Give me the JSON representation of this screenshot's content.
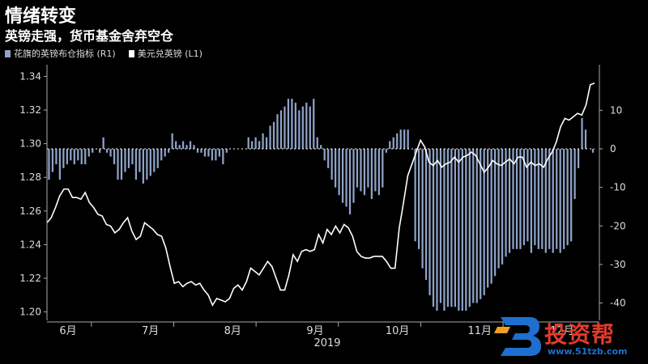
{
  "header": {
    "title": "情绪转变",
    "subtitle": "英镑走强，货币基金舍弃空仓"
  },
  "legend": {
    "items": [
      {
        "label": "花旗的英镑布仓指标 (R1)",
        "color": "#8fa3c8"
      },
      {
        "label": "美元兑英镑 (L1)",
        "color": "#ffffff"
      }
    ]
  },
  "watermark": {
    "brand": "投资帮",
    "url": "www.51tzb.com"
  },
  "chart_data": {
    "type": "bar+line",
    "x_year_label": "2019",
    "x_month_ticks": [
      "6月",
      "7月",
      "8月",
      "9月",
      "10月",
      "11月",
      "12月"
    ],
    "left_axis": {
      "ylim": [
        1.195,
        1.345
      ],
      "ticks": [
        1.2,
        1.22,
        1.24,
        1.26,
        1.28,
        1.3,
        1.32,
        1.34
      ]
    },
    "right_axis": {
      "ylim": [
        -44.5,
        21
      ],
      "ticks": [
        -40,
        -30,
        -20,
        -10,
        0,
        10
      ]
    },
    "series": [
      {
        "name": "花旗的英镑布仓指标 (R1)",
        "kind": "bar",
        "axis": "right",
        "color": "#8fa3c8",
        "values": [
          -8,
          -6,
          -4,
          -8,
          -5,
          -4,
          -3,
          -4,
          -3,
          -4,
          -4,
          -2,
          -1,
          0,
          -1,
          3,
          -1,
          -2,
          -4,
          -8,
          -8,
          -6,
          -5,
          -4,
          -8,
          -6,
          -9,
          -8,
          -7,
          -6,
          -5,
          -3,
          -2,
          -1,
          4,
          2,
          1,
          2,
          1,
          2,
          1,
          -1,
          -1,
          -2,
          -2,
          -3,
          -3,
          -2,
          -4,
          -1,
          0,
          0,
          0,
          0,
          0,
          3,
          2,
          3,
          2,
          4,
          3,
          6,
          7,
          9,
          10,
          11,
          13,
          13,
          12,
          10,
          11,
          12,
          11,
          13,
          3,
          1,
          -3,
          -5,
          -8,
          -10,
          -12,
          -14,
          -15,
          -17,
          -14,
          -10,
          -11,
          -12,
          -10,
          -13,
          -11,
          -12,
          -10,
          -1,
          2,
          3,
          4,
          5,
          5,
          5,
          0,
          -24,
          -26,
          -31,
          -34,
          -38,
          -41,
          -42,
          -40,
          -42,
          -41,
          -41,
          -41,
          -42,
          -42,
          -42,
          -41,
          -40,
          -40,
          -39,
          -38,
          -36,
          -35,
          -33,
          -31,
          -30,
          -28,
          -27,
          -26,
          -26,
          -26,
          -25,
          -24,
          -27,
          -25,
          -26,
          -26,
          -27,
          -26,
          -27,
          -26,
          -27,
          -26,
          -25,
          -24,
          -13,
          -5,
          8,
          5,
          0,
          -1
        ]
      },
      {
        "name": "美元兑英镑 (L1)",
        "kind": "line",
        "axis": "left",
        "color": "#ffffff",
        "values": [
          1.253,
          1.256,
          1.262,
          1.269,
          1.273,
          1.273,
          1.268,
          1.268,
          1.267,
          1.271,
          1.265,
          1.262,
          1.258,
          1.257,
          1.252,
          1.251,
          1.247,
          1.249,
          1.253,
          1.256,
          1.248,
          1.243,
          1.245,
          1.253,
          1.251,
          1.249,
          1.246,
          1.245,
          1.238,
          1.227,
          1.217,
          1.218,
          1.215,
          1.217,
          1.218,
          1.216,
          1.217,
          1.213,
          1.21,
          1.204,
          1.208,
          1.207,
          1.206,
          1.208,
          1.214,
          1.216,
          1.213,
          1.218,
          1.226,
          1.224,
          1.222,
          1.226,
          1.23,
          1.227,
          1.22,
          1.213,
          1.213,
          1.222,
          1.234,
          1.23,
          1.236,
          1.237,
          1.236,
          1.237,
          1.246,
          1.241,
          1.249,
          1.246,
          1.251,
          1.247,
          1.252,
          1.25,
          1.245,
          1.236,
          1.233,
          1.232,
          1.232,
          1.233,
          1.233,
          1.233,
          1.23,
          1.226,
          1.226,
          1.25,
          1.265,
          1.281,
          1.288,
          1.295,
          1.302,
          1.298,
          1.289,
          1.287,
          1.29,
          1.286,
          1.288,
          1.289,
          1.292,
          1.289,
          1.292,
          1.293,
          1.295,
          1.293,
          1.288,
          1.283,
          1.286,
          1.29,
          1.288,
          1.287,
          1.289,
          1.291,
          1.288,
          1.292,
          1.292,
          1.286,
          1.289,
          1.287,
          1.288,
          1.286,
          1.291,
          1.295,
          1.301,
          1.31,
          1.315,
          1.314,
          1.316,
          1.318,
          1.317,
          1.323,
          1.335,
          1.336
        ]
      }
    ]
  }
}
